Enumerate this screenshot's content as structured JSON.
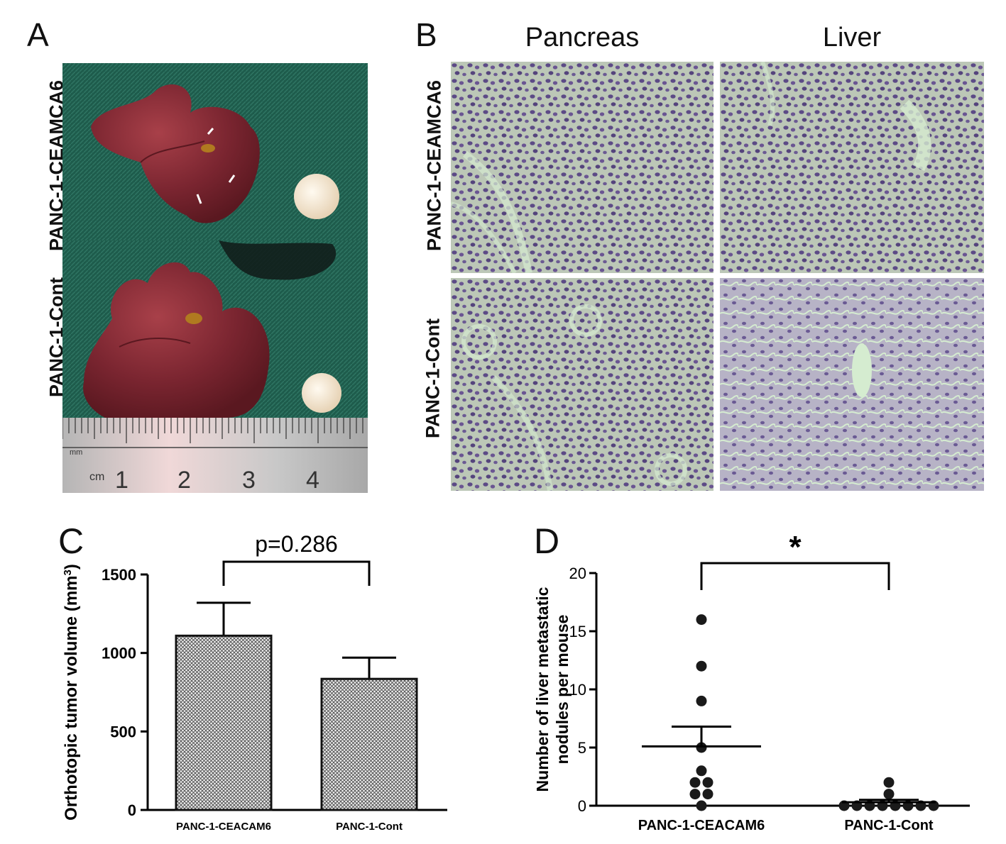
{
  "panelA": {
    "letter": "A",
    "row_labels": [
      "PANC-1-CEAMCA6",
      "PANC-1-Cont"
    ],
    "ruler": {
      "unit_small": "mm",
      "unit_large": "cm",
      "numbers": [
        "1",
        "2",
        "3",
        "4"
      ]
    },
    "colors": {
      "cloth": "#1e5c4c",
      "liver": "#7a2530",
      "tumor": "#f3e7d6"
    }
  },
  "panelB": {
    "letter": "B",
    "col_titles": [
      "Pancreas",
      "Liver"
    ],
    "row_labels": [
      "PANC-1-CEAMCA6",
      "PANC-1-Cont"
    ],
    "colors": {
      "stain_bg": "#c2cdb9",
      "nuclei": "#5c4a86"
    }
  },
  "chart_data": [
    {
      "panel": "C",
      "type": "bar",
      "categories": [
        "PANC-1-CEACAM6",
        "PANC-1-Cont"
      ],
      "values": [
        1110,
        835
      ],
      "error_upper": [
        1320,
        970
      ],
      "ylabel": "Orthotopic tumor volume (mm",
      "ylabel_superscript": "3",
      "ylabel_close": ")",
      "ylim": [
        0,
        1500
      ],
      "yticks": [
        "0",
        "500",
        "1000",
        "1500"
      ],
      "annotation": "p=0.286",
      "fill": "crosshatch"
    },
    {
      "panel": "D",
      "type": "scatter",
      "categories": [
        "PANC-1-CEACAM6",
        "PANC-1-Cont"
      ],
      "points": [
        [
          16,
          12,
          9,
          5,
          3,
          2,
          2,
          1,
          1,
          0
        ],
        [
          2,
          1,
          0,
          0,
          0,
          0,
          0,
          0,
          0,
          0
        ]
      ],
      "means": [
        5.1,
        0.3
      ],
      "sem_upper": [
        6.8,
        0.5
      ],
      "ylabel_line1": "Number of liver metastatic",
      "ylabel_line2": "nodules per mouse",
      "ylim": [
        0,
        20
      ],
      "yticks": [
        "0",
        "5",
        "10",
        "15",
        "20"
      ],
      "annotation": "*"
    }
  ]
}
